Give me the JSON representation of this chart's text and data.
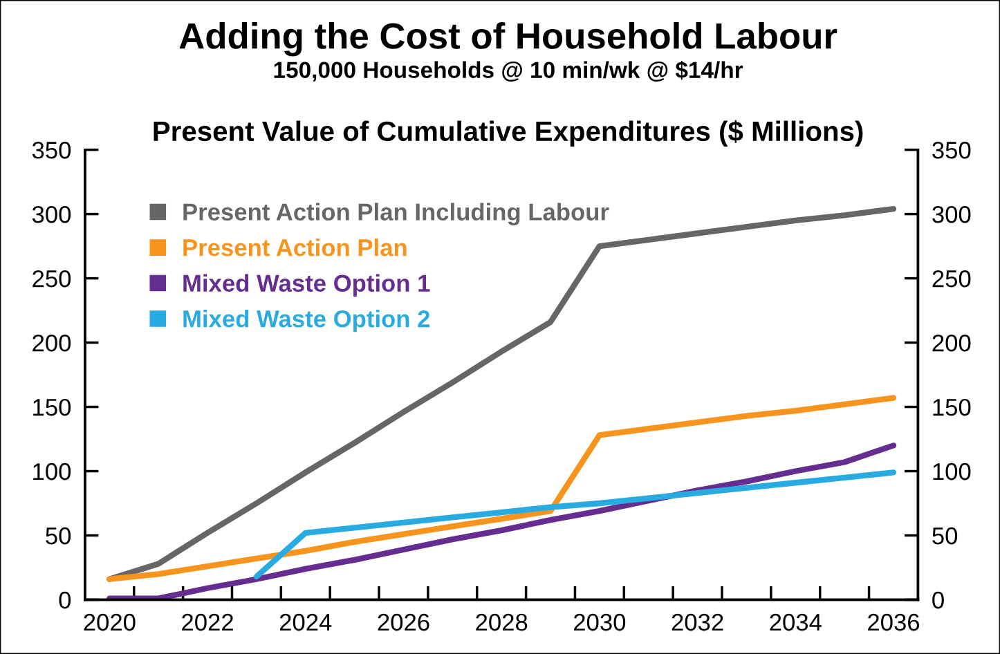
{
  "chart_data": {
    "type": "line",
    "title": "Adding the Cost of Household Labour",
    "subtitle": "150,000 Households @ 10 min/wk @ $14/hr",
    "annotations": [
      "Present Value of Cumulative Expenditures ($ Millions)"
    ],
    "categories": [
      "2020",
      null,
      "2022",
      null,
      "2024",
      null,
      "2026",
      null,
      "2028",
      null,
      "2030",
      null,
      "2032",
      null,
      "2034",
      null,
      "2036"
    ],
    "ylim": [
      0,
      350
    ],
    "yticks": [
      0,
      50,
      100,
      150,
      200,
      250,
      300,
      350
    ],
    "y2lim": [
      0,
      350
    ],
    "y2ticks": [
      0,
      50,
      100,
      150,
      200,
      250,
      300,
      350
    ],
    "grid": false,
    "legend": "top left",
    "marker": "none",
    "line_style": "solid",
    "series": [
      {
        "name": "Present Action Plan Including Labour",
        "color": "#666666",
        "values": [
          16,
          28,
          52,
          75,
          99,
          122,
          146,
          169,
          193,
          216,
          275,
          280,
          285,
          290,
          295,
          299,
          304
        ]
      },
      {
        "name": "Present Action Plan",
        "color": "#f7941d",
        "values": [
          16,
          20,
          26,
          32,
          38,
          45,
          51,
          57,
          63,
          69,
          128,
          133,
          138,
          143,
          147,
          152,
          157
        ]
      },
      {
        "name": "Mixed Waste Option 1",
        "color": "#662d91",
        "values": [
          1,
          1,
          9,
          16,
          24,
          31,
          39,
          47,
          54,
          62,
          69,
          77,
          85,
          92,
          100,
          107,
          120
        ]
      },
      {
        "name": "Mixed Waste Option 2",
        "color": "#29abe2",
        "values": [
          null,
          null,
          null,
          18,
          52,
          56,
          60,
          64,
          68,
          72,
          75,
          79,
          83,
          87,
          91,
          95,
          99
        ]
      }
    ]
  }
}
